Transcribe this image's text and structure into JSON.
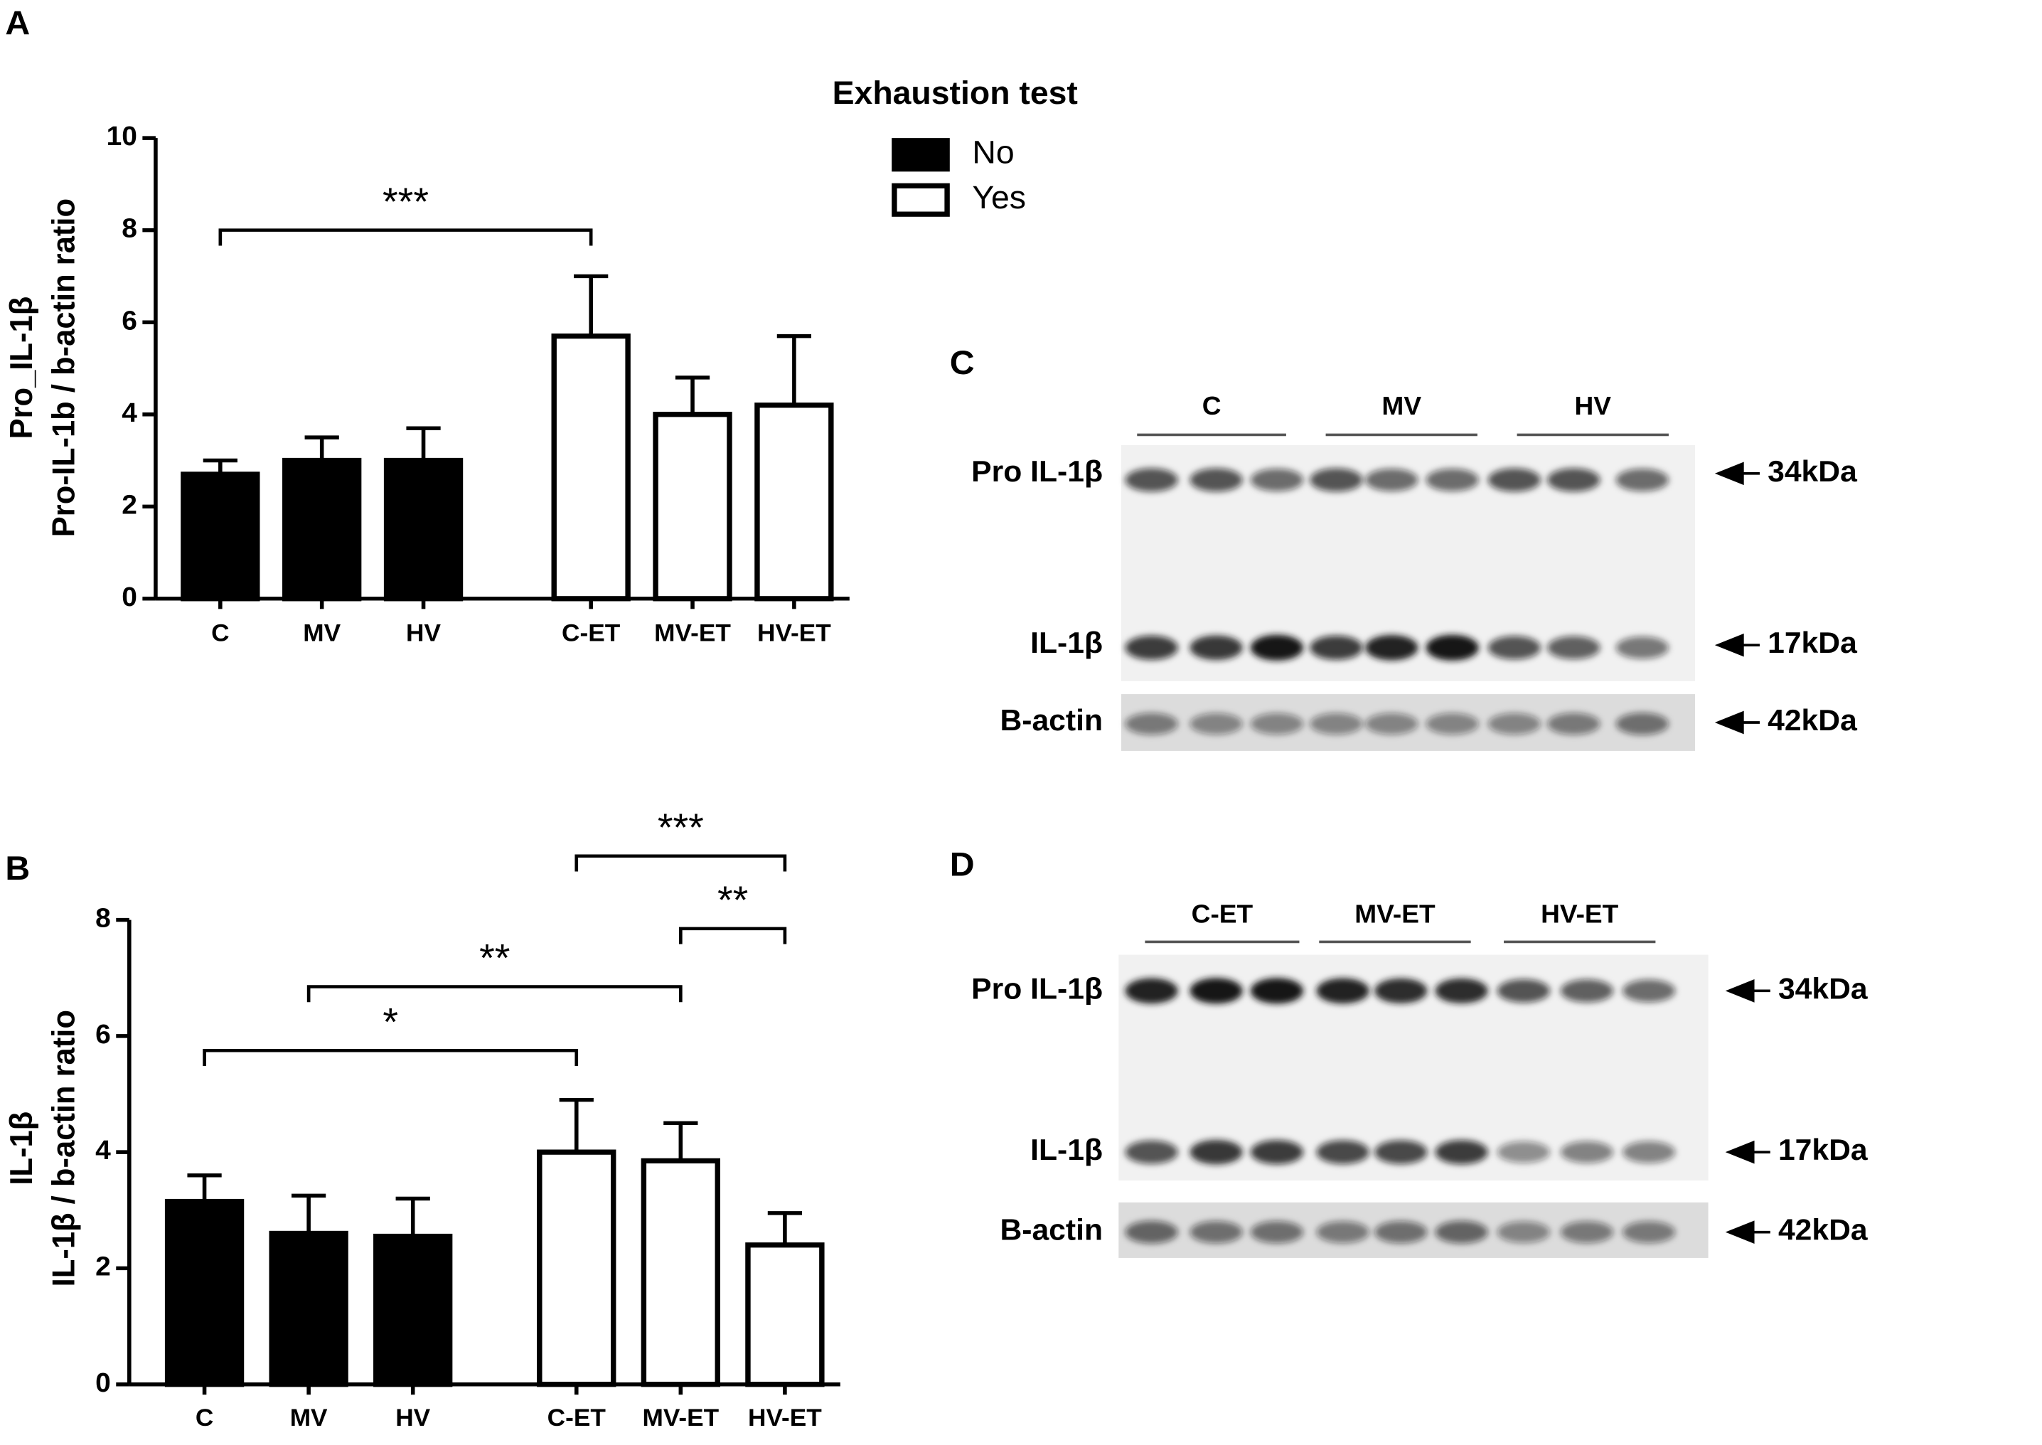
{
  "chart_data": [
    {
      "type": "bar",
      "panel": "A",
      "legend_title": "Exhaustion test",
      "ylabel": [
        "Pro_IL-1β",
        "Pro-IL-1b / b-actin ratio"
      ],
      "categories": [
        "C",
        "MV",
        "HV",
        "C-ET",
        "MV-ET",
        "HV-ET"
      ],
      "series": [
        {
          "name": "No",
          "color": "#000000",
          "values": [
            2.7,
            3.0,
            3.0,
            null,
            null,
            null
          ],
          "errors": [
            0.3,
            0.5,
            0.7,
            null,
            null,
            null
          ]
        },
        {
          "name": "Yes",
          "color": "#ffffff",
          "values": [
            null,
            null,
            null,
            5.7,
            4.0,
            4.2
          ],
          "errors": [
            null,
            null,
            null,
            1.3,
            0.8,
            1.5
          ]
        }
      ],
      "ylim": [
        0,
        10
      ],
      "yticks": [
        0,
        2,
        4,
        6,
        8,
        10
      ],
      "annotations": [
        {
          "label": "***",
          "from": 0,
          "to": 3,
          "y": 8
        }
      ]
    },
    {
      "type": "bar",
      "panel": "B",
      "ylabel": [
        "IL-1β",
        "IL-1β / b-actin ratio"
      ],
      "categories": [
        "C",
        "MV",
        "HV",
        "C-ET",
        "MV-ET",
        "HV-ET"
      ],
      "series": [
        {
          "name": "No",
          "color": "#000000",
          "values": [
            3.15,
            2.6,
            2.55,
            null,
            null,
            null
          ],
          "errors": [
            0.45,
            0.65,
            0.65,
            null,
            null,
            null
          ]
        },
        {
          "name": "Yes",
          "color": "#ffffff",
          "values": [
            null,
            null,
            null,
            4.0,
            3.85,
            2.4
          ],
          "errors": [
            null,
            null,
            null,
            0.9,
            0.65,
            0.55
          ]
        }
      ],
      "ylim": [
        0,
        8
      ],
      "yticks": [
        0,
        2,
        4,
        6,
        8
      ],
      "annotations": [
        {
          "label": "*",
          "from": 0,
          "to": 3,
          "y": 5.75
        },
        {
          "label": "**",
          "from": 1,
          "to": 4,
          "y": 6.85
        },
        {
          "label": "**",
          "from": 4,
          "to": 5,
          "y": 7.85
        },
        {
          "label": "***",
          "from": 3,
          "to": 5,
          "y": 9.1
        }
      ]
    }
  ],
  "blots": [
    {
      "panel": "C",
      "groups": [
        "C",
        "MV",
        "HV"
      ],
      "rows": [
        {
          "label": "Pro IL-1β",
          "size": "34kDa"
        },
        {
          "label": "IL-1β",
          "size": "17kDa"
        },
        {
          "label": "B-actin",
          "size": "42kDa"
        }
      ]
    },
    {
      "panel": "D",
      "groups": [
        "C-ET",
        "MV-ET",
        "HV-ET"
      ],
      "rows": [
        {
          "label": "Pro IL-1β",
          "size": "34kDa"
        },
        {
          "label": "IL-1β",
          "size": "17kDa"
        },
        {
          "label": "B-actin",
          "size": "42kDa"
        }
      ]
    }
  ]
}
